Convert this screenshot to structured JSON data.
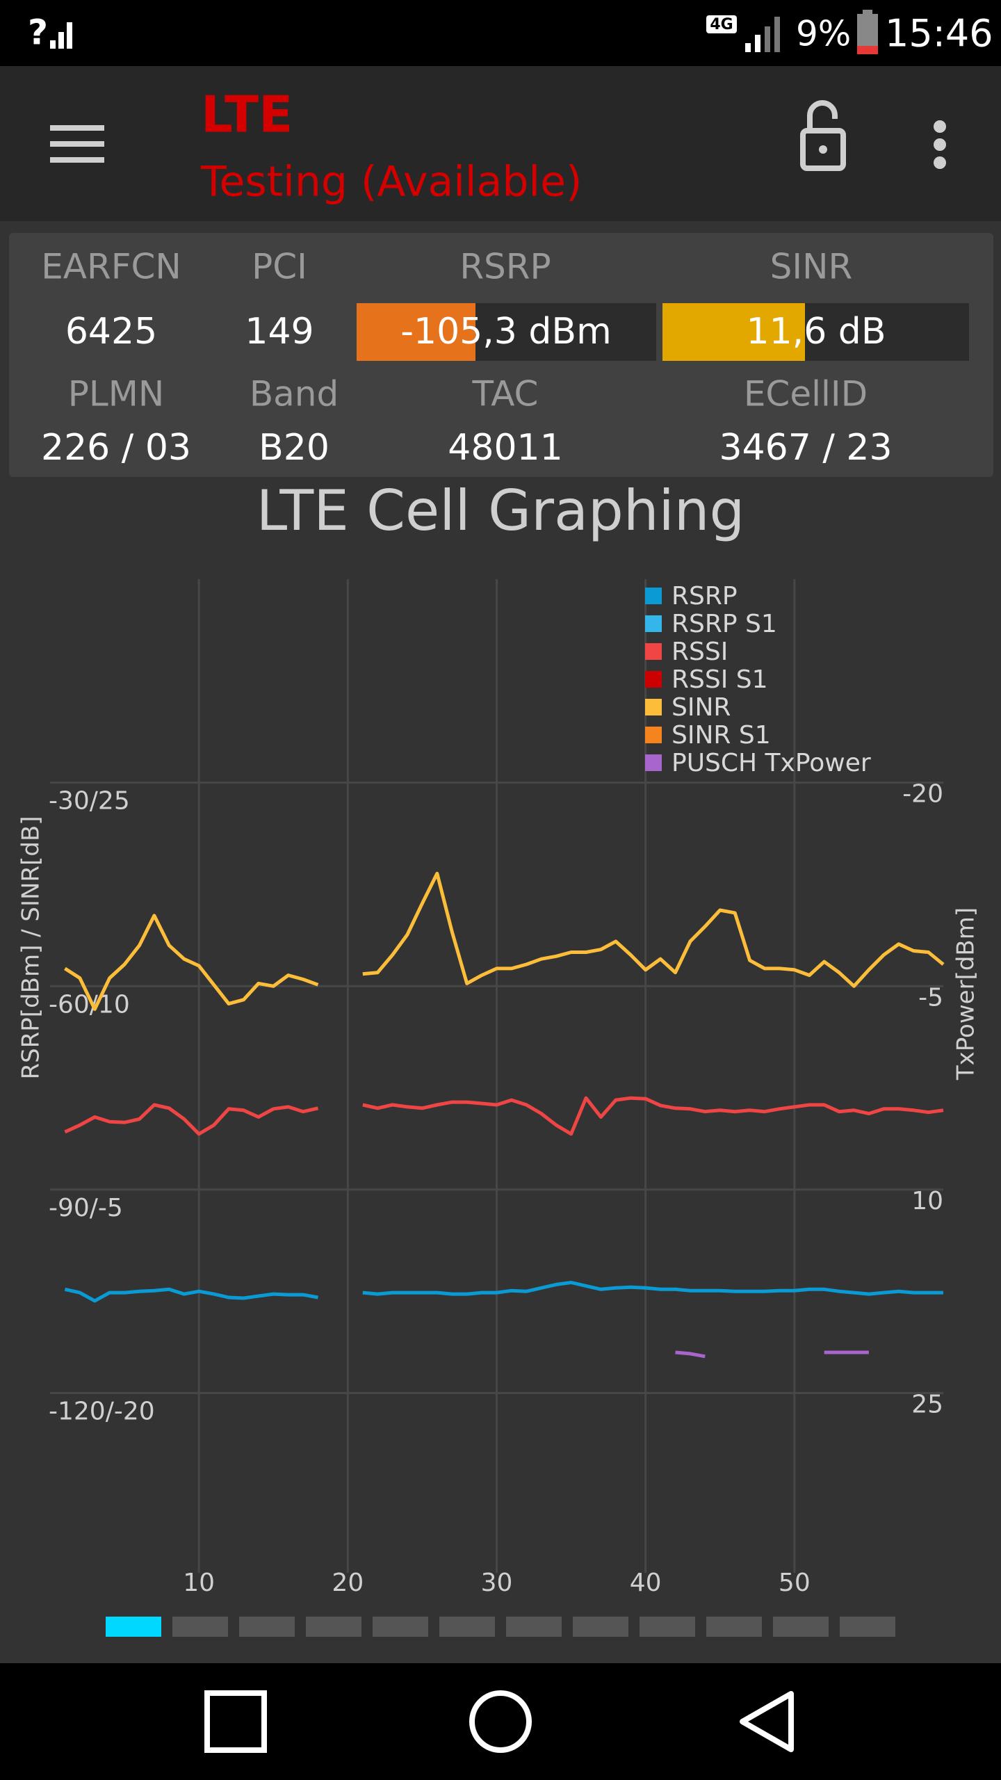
{
  "status_bar": {
    "network": "4G",
    "battery": "9%",
    "time": "15:46"
  },
  "app_bar": {
    "title": "LTE",
    "subtitle": "Testing (Available)"
  },
  "info": {
    "labels_top": [
      "EARFCN",
      "PCI",
      "RSRP",
      "SINR"
    ],
    "values_top": [
      "6425",
      "149",
      "-105,3 dBm",
      "11,6 dB"
    ],
    "labels_bottom": [
      "PLMN",
      "Band",
      "TAC",
      "ECellID"
    ],
    "values_bottom": [
      "226 / 03",
      "B20",
      "48011",
      "3467 / 23"
    ]
  },
  "chart_data": {
    "type": "line",
    "title": "LTE Cell Graphing",
    "y_label": "RSRP[dBm] / SINR[dB]",
    "y2_label": "TxPower[dBm]",
    "x": [
      1,
      2,
      3,
      4,
      5,
      6,
      7,
      8,
      9,
      10,
      11,
      12,
      13,
      14,
      15,
      16,
      17,
      18,
      19,
      20,
      21,
      22,
      23,
      24,
      25,
      26,
      27,
      28,
      29,
      30,
      31,
      32,
      33,
      34,
      35,
      36,
      37,
      38,
      39,
      40,
      41,
      42,
      43,
      44,
      45,
      46,
      47,
      48,
      49,
      50,
      51,
      52,
      53,
      54,
      55,
      56,
      57,
      58,
      59,
      60
    ],
    "xlim": [
      0,
      60
    ],
    "xticks": [
      10,
      20,
      30,
      40,
      50
    ],
    "ylim": [
      -146.5,
      0
    ],
    "yticks": [
      {
        "value": -30,
        "label": "-30/25"
      },
      {
        "value": -60,
        "label": "-60/10"
      },
      {
        "value": -90,
        "label": "-90/-5"
      },
      {
        "value": -120,
        "label": "-120/-20"
      }
    ],
    "y3lim": [
      -33.25,
      40
    ],
    "y2lim": [
      38.25,
      -35
    ],
    "y2ticks": [
      -20,
      -5,
      10,
      25
    ],
    "grid": true,
    "legend": "top-right",
    "series": [
      {
        "name": "RSRP",
        "color": "#0a9ad4",
        "values": [
          -104.7,
          -105.2,
          -106.4,
          -105.2,
          -105.2,
          -105.0,
          -104.9,
          -104.7,
          -105.4,
          -105.0,
          -105.4,
          -105.9,
          -106.0,
          -105.7,
          -105.4,
          -105.5,
          -105.5,
          -105.9,
          null,
          null,
          -105.2,
          -105.4,
          -105.2,
          -105.2,
          -105.2,
          -105.2,
          -105.4,
          -105.4,
          -105.2,
          -105.2,
          -104.9,
          -105.0,
          -104.5,
          -104.0,
          -103.7,
          -104.2,
          -104.7,
          -104.5,
          -104.4,
          -104.5,
          -104.7,
          -104.7,
          -104.9,
          -104.9,
          -104.9,
          -105.0,
          -105.0,
          -105.0,
          -104.9,
          -104.9,
          -104.7,
          -104.7,
          -105.0,
          -105.2,
          -105.4,
          -105.2,
          -105.0,
          -105.2,
          -105.2,
          -105.2
        ]
      },
      {
        "name": "RSRP S1",
        "color": "#34b6ea"
      },
      {
        "name": "RSSI",
        "color": "#f04545",
        "values": [
          -81.5,
          -80.5,
          -79.3,
          -80.0,
          -80.1,
          -79.6,
          -77.5,
          -78.0,
          -79.6,
          -81.8,
          -80.5,
          -78.1,
          -78.3,
          -79.3,
          -78.1,
          -77.8,
          -78.5,
          -78.0,
          null,
          null,
          -77.5,
          -78.0,
          -77.5,
          -77.8,
          -78.0,
          -77.5,
          -77.1,
          -77.1,
          -77.3,
          -77.5,
          -76.8,
          -77.5,
          -78.8,
          -80.5,
          -81.8,
          -76.5,
          -79.3,
          -76.8,
          -76.5,
          -76.6,
          -77.6,
          -78.0,
          -78.1,
          -78.5,
          -78.3,
          -78.5,
          -78.3,
          -78.5,
          -78.1,
          -77.8,
          -77.5,
          -77.5,
          -78.5,
          -78.3,
          -78.8,
          -78.1,
          -78.1,
          -78.3,
          -78.6,
          -78.3
        ]
      },
      {
        "name": "RSSI S1",
        "color": "#cc0000"
      },
      {
        "name": "SINR",
        "color": "#fbbd3a",
        "axis": "y3",
        "values": [
          11.3,
          10.6,
          8.3,
          10.6,
          11.6,
          13.0,
          15.2,
          13.0,
          12.0,
          11.5,
          10.1,
          8.7,
          9.0,
          10.2,
          10.0,
          10.8,
          10.5,
          10.1,
          null,
          null,
          10.9,
          11.0,
          12.3,
          13.8,
          16.1,
          18.3,
          14.0,
          10.2,
          10.8,
          11.3,
          11.3,
          11.6,
          12.0,
          12.2,
          12.5,
          12.5,
          12.7,
          13.3,
          12.3,
          11.2,
          12.0,
          11.0,
          13.3,
          14.4,
          15.6,
          15.4,
          11.9,
          11.3,
          11.3,
          11.2,
          10.8,
          11.8,
          11.0,
          10.0,
          11.2,
          12.3,
          13.1,
          12.6,
          12.5,
          11.6
        ]
      },
      {
        "name": "SINR S1",
        "color": "#f5841f"
      },
      {
        "name": "PUSCH TxPower",
        "color": "#a865cc",
        "axis": "y2",
        "values": [
          null,
          null,
          null,
          null,
          null,
          null,
          null,
          null,
          null,
          null,
          null,
          null,
          null,
          null,
          null,
          null,
          null,
          null,
          null,
          null,
          null,
          null,
          null,
          null,
          null,
          null,
          null,
          null,
          null,
          null,
          null,
          null,
          null,
          null,
          null,
          null,
          null,
          null,
          null,
          null,
          null,
          22.0,
          22.1,
          22.3,
          null,
          null,
          null,
          null,
          null,
          null,
          null,
          22.0,
          22.0,
          22.0,
          22.0,
          null,
          null,
          null,
          null,
          null
        ]
      }
    ]
  }
}
